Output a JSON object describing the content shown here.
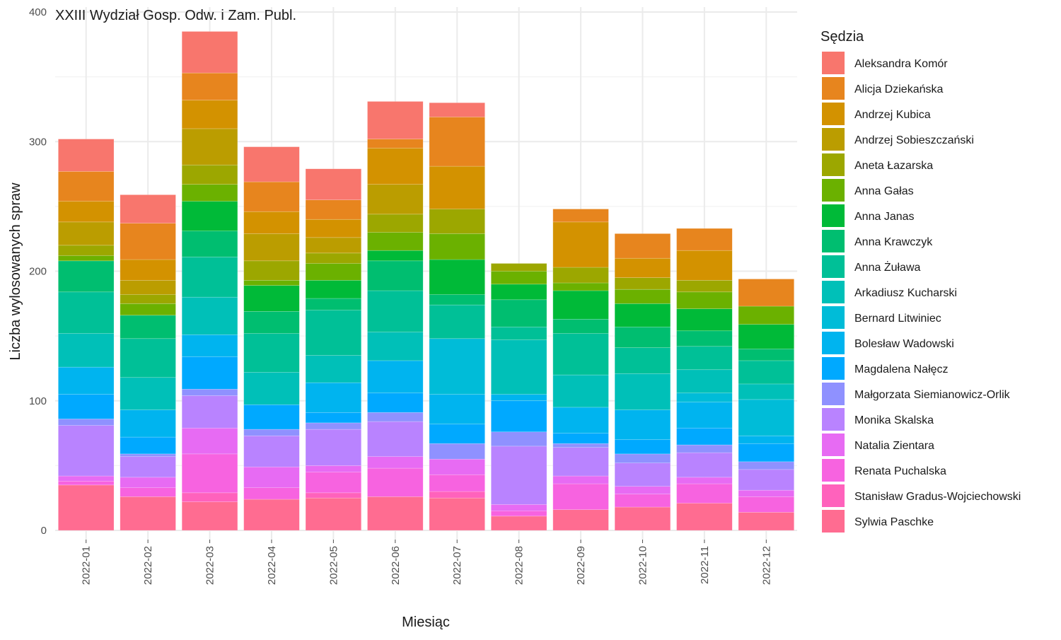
{
  "chart_data": {
    "type": "bar",
    "stacked": true,
    "title": "XXIII Wydział Gosp. Odw. i Zam. Publ.",
    "xlabel": "Miesiąc",
    "ylabel": "Liczba wylosowanych spraw",
    "ylim": [
      0,
      400
    ],
    "yticks": [
      0,
      100,
      200,
      300,
      400
    ],
    "grid": true,
    "legend_title": "Sędzia",
    "legend_position": "right",
    "categories": [
      "2022-01",
      "2022-02",
      "2022-03",
      "2022-04",
      "2022-05",
      "2022-06",
      "2022-07",
      "2022-08",
      "2022-09",
      "2022-10",
      "2022-11",
      "2022-12"
    ],
    "series": [
      {
        "name": "Sylwia Paschke",
        "color": "#FF6C91",
        "values": [
          35,
          26,
          22,
          24,
          25,
          26,
          25,
          11,
          16,
          18,
          21,
          14
        ]
      },
      {
        "name": "Stanisław Gradus-Wojciechowski",
        "color": "#FF62BC",
        "values": [
          0,
          0,
          7,
          0,
          4,
          0,
          5,
          0,
          0,
          0,
          0,
          0
        ]
      },
      {
        "name": "Renata Puchalska",
        "color": "#F763E0",
        "values": [
          3,
          7,
          30,
          9,
          16,
          22,
          13,
          4,
          20,
          10,
          15,
          12
        ]
      },
      {
        "name": "Natalia Zientara",
        "color": "#E76BF3",
        "values": [
          4,
          8,
          20,
          16,
          5,
          9,
          12,
          5,
          6,
          6,
          5,
          5
        ]
      },
      {
        "name": "Monika Skalska",
        "color": "#B983FF",
        "values": [
          39,
          16,
          25,
          24,
          28,
          27,
          0,
          45,
          22,
          18,
          19,
          16
        ]
      },
      {
        "name": "Małgorzata Siemianowicz-Orlik",
        "color": "#8F91FF",
        "values": [
          5,
          2,
          5,
          5,
          5,
          7,
          12,
          11,
          3,
          7,
          6,
          6
        ]
      },
      {
        "name": "Magdalena Nałęcz",
        "color": "#00A9FF",
        "values": [
          19,
          13,
          25,
          19,
          8,
          15,
          15,
          24,
          8,
          11,
          13,
          14
        ]
      },
      {
        "name": "Bolesław Wadowski",
        "color": "#00B4EF",
        "values": [
          21,
          21,
          17,
          0,
          23,
          25,
          23,
          5,
          20,
          23,
          20,
          6
        ]
      },
      {
        "name": "Bernard Litwiniec",
        "color": "#00BCD8",
        "values": [
          0,
          0,
          0,
          0,
          0,
          0,
          43,
          0,
          0,
          0,
          7,
          28
        ]
      },
      {
        "name": "Arkadiusz Kucharski",
        "color": "#00C0B8",
        "values": [
          26,
          25,
          29,
          25,
          21,
          22,
          0,
          42,
          25,
          28,
          18,
          12
        ]
      },
      {
        "name": "Anna Żuława",
        "color": "#00C097",
        "values": [
          32,
          30,
          31,
          30,
          35,
          32,
          26,
          10,
          32,
          20,
          18,
          18
        ]
      },
      {
        "name": "Anna Krawczyk",
        "color": "#00BE70",
        "values": [
          24,
          18,
          20,
          17,
          9,
          23,
          8,
          21,
          11,
          16,
          12,
          9
        ]
      },
      {
        "name": "Anna Janas",
        "color": "#00BA38",
        "values": [
          0,
          0,
          23,
          20,
          14,
          8,
          27,
          12,
          22,
          18,
          17,
          19
        ]
      },
      {
        "name": "Anna Gałas",
        "color": "#6BB100",
        "values": [
          4,
          9,
          13,
          4,
          13,
          14,
          20,
          10,
          6,
          11,
          13,
          14
        ]
      },
      {
        "name": "Aneta Łazarska",
        "color": "#9CA700",
        "values": [
          8,
          7,
          15,
          15,
          8,
          14,
          19,
          6,
          12,
          9,
          9,
          0
        ]
      },
      {
        "name": "Andrzej Sobieszczański",
        "color": "#BB9D00",
        "values": [
          18,
          11,
          28,
          21,
          12,
          23,
          0,
          0,
          0,
          0,
          0,
          0
        ]
      },
      {
        "name": "Andrzej Kubica",
        "color": "#D39200",
        "values": [
          16,
          16,
          22,
          17,
          14,
          28,
          33,
          0,
          35,
          15,
          23,
          0
        ]
      },
      {
        "name": "Alicja Dziekańska",
        "color": "#E7851E",
        "values": [
          23,
          28,
          21,
          23,
          15,
          7,
          38,
          0,
          10,
          19,
          17,
          21
        ]
      },
      {
        "name": "Aleksandra Komór",
        "color": "#F8766D",
        "values": [
          25,
          22,
          32,
          27,
          24,
          29,
          11,
          0,
          0,
          0,
          0,
          0
        ]
      }
    ]
  }
}
